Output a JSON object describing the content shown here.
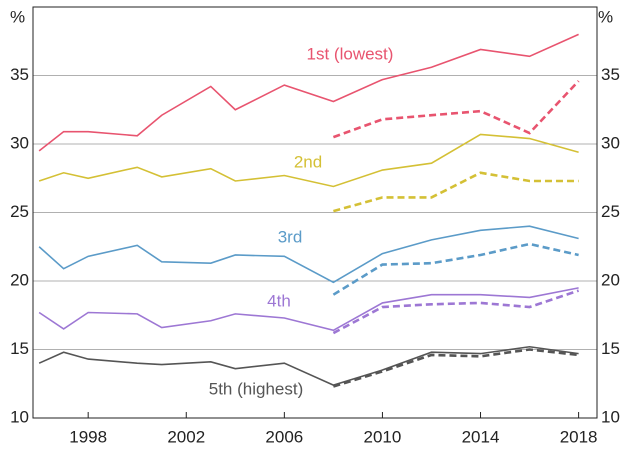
{
  "chart_data": {
    "type": "line",
    "y_unit": "%",
    "x": [
      1996,
      1997,
      1998,
      2000,
      2001,
      2003,
      2004,
      2006,
      2008,
      2010,
      2012,
      2014,
      2016,
      2018
    ],
    "xlim": [
      1995.75,
      2018.75
    ],
    "xticks": [
      1998,
      2002,
      2006,
      2010,
      2014,
      2018
    ],
    "ylim": [
      10,
      40
    ],
    "yticks": [
      10,
      15,
      20,
      25,
      30,
      35
    ],
    "grid": true,
    "series": [
      {
        "name": "1st (lowest)",
        "color": "#e8546f",
        "values": [
          29.5,
          30.9,
          30.9,
          30.6,
          32.1,
          34.2,
          32.5,
          34.3,
          33.1,
          34.7,
          35.6,
          36.9,
          36.4,
          38.0
        ]
      },
      {
        "color": "#e8546f",
        "dashed": true,
        "values": [
          null,
          null,
          null,
          null,
          null,
          null,
          null,
          null,
          30.5,
          31.8,
          32.1,
          32.4,
          30.8,
          34.6
        ]
      },
      {
        "name": "2nd",
        "color": "#d4c035",
        "values": [
          27.3,
          27.9,
          27.5,
          28.3,
          27.6,
          28.2,
          27.3,
          27.7,
          26.9,
          28.1,
          28.6,
          30.7,
          30.4,
          29.4
        ]
      },
      {
        "color": "#d4c035",
        "dashed": true,
        "values": [
          null,
          null,
          null,
          null,
          null,
          null,
          null,
          null,
          25.1,
          26.1,
          26.1,
          27.9,
          27.3,
          27.3
        ]
      },
      {
        "name": "3rd",
        "color": "#5b9bc8",
        "values": [
          22.5,
          20.9,
          21.8,
          22.6,
          21.4,
          21.3,
          21.9,
          21.8,
          19.9,
          22.0,
          23.0,
          23.7,
          24.0,
          23.1
        ]
      },
      {
        "color": "#5b9bc8",
        "dashed": true,
        "values": [
          null,
          null,
          null,
          null,
          null,
          null,
          null,
          null,
          19.0,
          21.2,
          21.3,
          21.9,
          22.7,
          21.9
        ]
      },
      {
        "name": "4th",
        "color": "#9d77d4",
        "values": [
          17.7,
          16.5,
          17.7,
          17.6,
          16.6,
          17.1,
          17.6,
          17.3,
          16.4,
          18.4,
          19.0,
          19.0,
          18.8,
          19.5
        ]
      },
      {
        "color": "#9d77d4",
        "dashed": true,
        "values": [
          null,
          null,
          null,
          null,
          null,
          null,
          null,
          null,
          16.2,
          18.1,
          18.3,
          18.4,
          18.1,
          19.3
        ]
      },
      {
        "name": "5th (highest)",
        "color": "#555555",
        "values": [
          14.0,
          14.8,
          14.3,
          14.0,
          13.9,
          14.1,
          13.6,
          14.0,
          12.4,
          13.5,
          14.8,
          14.7,
          15.2,
          14.7
        ]
      },
      {
        "color": "#555555",
        "dashed": true,
        "values": [
          null,
          null,
          null,
          null,
          null,
          null,
          null,
          null,
          12.3,
          13.4,
          14.6,
          14.5,
          15.0,
          14.6
        ]
      }
    ]
  }
}
